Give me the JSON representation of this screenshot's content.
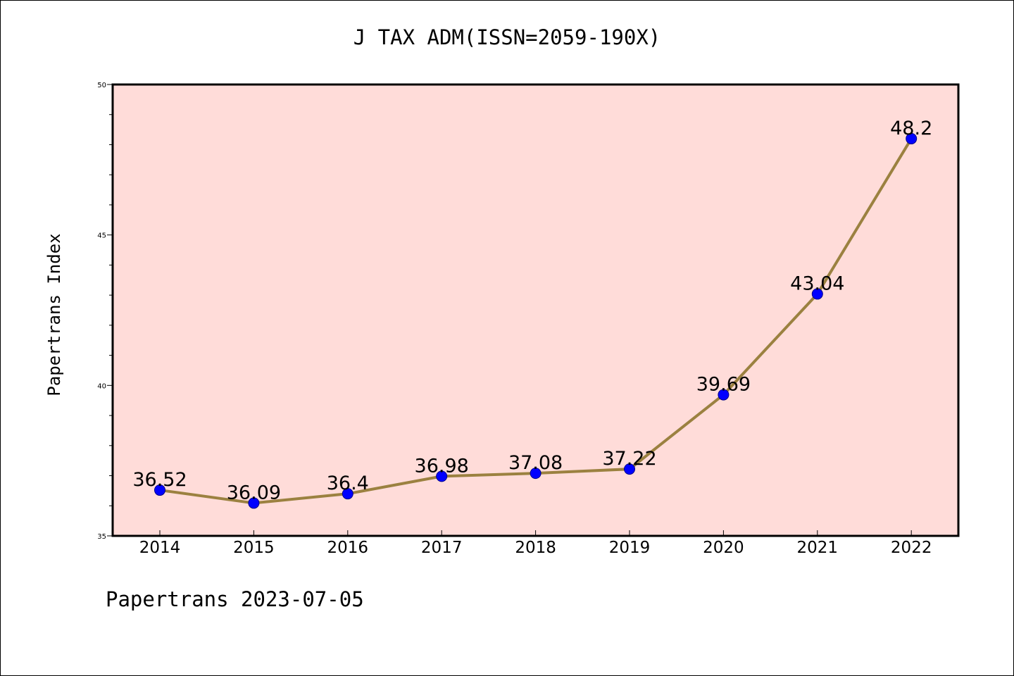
{
  "footer": {
    "text": "Papertrans 2023-07-05"
  },
  "chart_data": {
    "type": "line",
    "title": "J TAX ADM(ISSN=2059-190X)",
    "xlabel": "",
    "ylabel": "Papertrans Index",
    "categories": [
      "2014",
      "2015",
      "2016",
      "2017",
      "2018",
      "2019",
      "2020",
      "2021",
      "2022"
    ],
    "series": [
      {
        "values": [
          36.52,
          36.09,
          36.4,
          36.98,
          37.08,
          37.22,
          39.69,
          43.04,
          48.2
        ],
        "data_labels": [
          "36.52",
          "36.09",
          "36.4",
          "36.98",
          "37.08",
          "37.22",
          "39.69",
          "43.04",
          "48.2"
        ]
      }
    ],
    "ylim": [
      35,
      50
    ],
    "yticks": [
      35,
      40,
      45,
      50
    ],
    "grid": false,
    "legend": "none",
    "colors": {
      "background": "#ffdcd9",
      "line": "#9b8140",
      "marker": "#0000ff"
    }
  }
}
